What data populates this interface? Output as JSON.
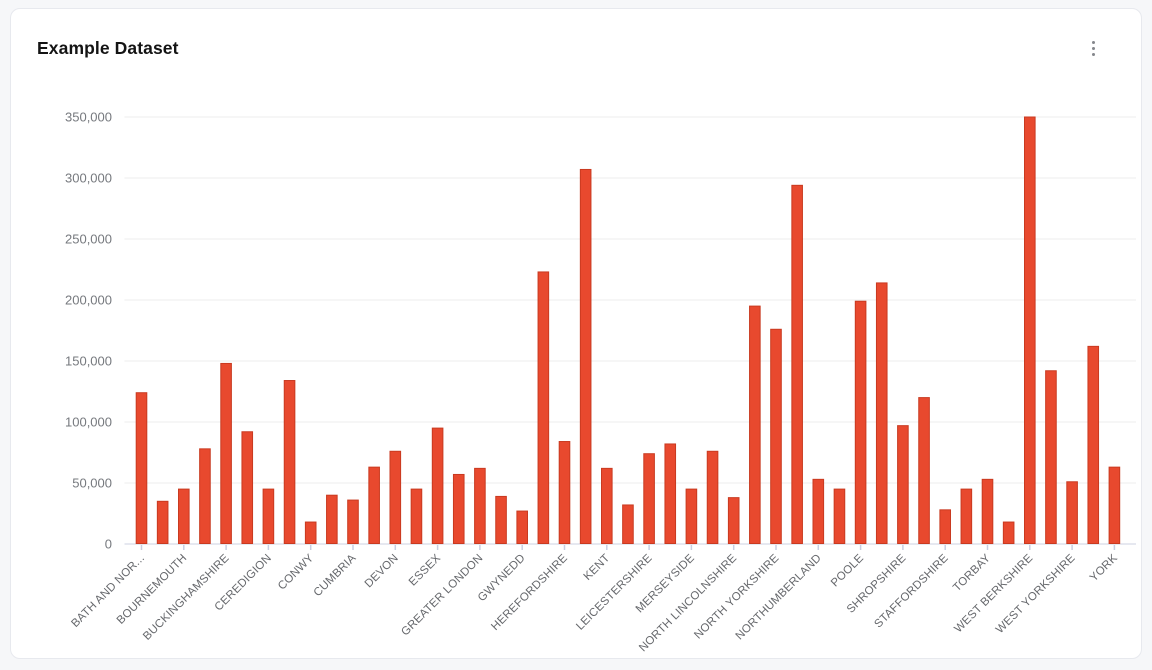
{
  "card": {
    "title": "Example Dataset"
  },
  "icons": {
    "menu": "kebab-vertical-menu"
  },
  "colors": {
    "bar_fill": "#e8492e",
    "bar_border": "#c93a20",
    "gridline": "#ececec",
    "axis_line": "#dde1ec",
    "tick": "#c8cfe2",
    "y_label": "#76797e",
    "x_label": "#66686c",
    "card_border": "#e7e9ee",
    "page_background": "#f6f7f9"
  },
  "chart_data": {
    "type": "bar",
    "title": "Example Dataset",
    "xlabel": "",
    "ylabel": "",
    "ylim": [
      0,
      350000
    ],
    "grid": true,
    "legend": "none",
    "x_label_rotation": 45,
    "x_labels_shown_every": 2,
    "y_ticks": [
      {
        "value": 0,
        "label": "0"
      },
      {
        "value": 50000,
        "label": "50,000"
      },
      {
        "value": 100000,
        "label": "100,000"
      },
      {
        "value": 150000,
        "label": "150,000"
      },
      {
        "value": 200000,
        "label": "200,000"
      },
      {
        "value": 250000,
        "label": "250,000"
      },
      {
        "value": 300000,
        "label": "300,000"
      },
      {
        "value": 350000,
        "label": "350,000"
      }
    ],
    "bars": [
      {
        "label": "BATH AND NOR...",
        "value": 124000
      },
      {
        "label": "",
        "value": 35000
      },
      {
        "label": "BOURNEMOUTH",
        "value": 45000
      },
      {
        "label": "",
        "value": 78000
      },
      {
        "label": "BUCKINGHAMSHIRE",
        "value": 148000
      },
      {
        "label": "",
        "value": 92000
      },
      {
        "label": "CEREDIGION",
        "value": 45000
      },
      {
        "label": "",
        "value": 134000
      },
      {
        "label": "CONWY",
        "value": 18000
      },
      {
        "label": "",
        "value": 40000
      },
      {
        "label": "CUMBRIA",
        "value": 36000
      },
      {
        "label": "",
        "value": 63000
      },
      {
        "label": "DEVON",
        "value": 76000
      },
      {
        "label": "",
        "value": 45000
      },
      {
        "label": "ESSEX",
        "value": 95000
      },
      {
        "label": "",
        "value": 57000
      },
      {
        "label": "GREATER LONDON",
        "value": 62000
      },
      {
        "label": "",
        "value": 39000
      },
      {
        "label": "GWYNEDD",
        "value": 27000
      },
      {
        "label": "",
        "value": 223000
      },
      {
        "label": "HEREFORDSHIRE",
        "value": 84000
      },
      {
        "label": "",
        "value": 307000
      },
      {
        "label": "KENT",
        "value": 62000
      },
      {
        "label": "",
        "value": 32000
      },
      {
        "label": "LEICESTERSHIRE",
        "value": 74000
      },
      {
        "label": "",
        "value": 82000
      },
      {
        "label": "MERSEYSIDE",
        "value": 45000
      },
      {
        "label": "",
        "value": 76000
      },
      {
        "label": "NORTH LINCOLNSHIRE",
        "value": 38000
      },
      {
        "label": "",
        "value": 195000
      },
      {
        "label": "NORTH YORKSHIRE",
        "value": 176000
      },
      {
        "label": "",
        "value": 294000
      },
      {
        "label": "NORTHUMBERLAND",
        "value": 53000
      },
      {
        "label": "",
        "value": 45000
      },
      {
        "label": "POOLE",
        "value": 199000
      },
      {
        "label": "",
        "value": 214000
      },
      {
        "label": "SHROPSHIRE",
        "value": 97000
      },
      {
        "label": "",
        "value": 120000
      },
      {
        "label": "STAFFORDSHIRE",
        "value": 28000
      },
      {
        "label": "",
        "value": 45000
      },
      {
        "label": "TORBAY",
        "value": 53000
      },
      {
        "label": "",
        "value": 18000
      },
      {
        "label": "WEST BERKSHIRE",
        "value": 350000
      },
      {
        "label": "",
        "value": 142000
      },
      {
        "label": "WEST YORKSHIRE",
        "value": 51000
      },
      {
        "label": "",
        "value": 162000
      },
      {
        "label": "YORK",
        "value": 63000
      }
    ]
  }
}
